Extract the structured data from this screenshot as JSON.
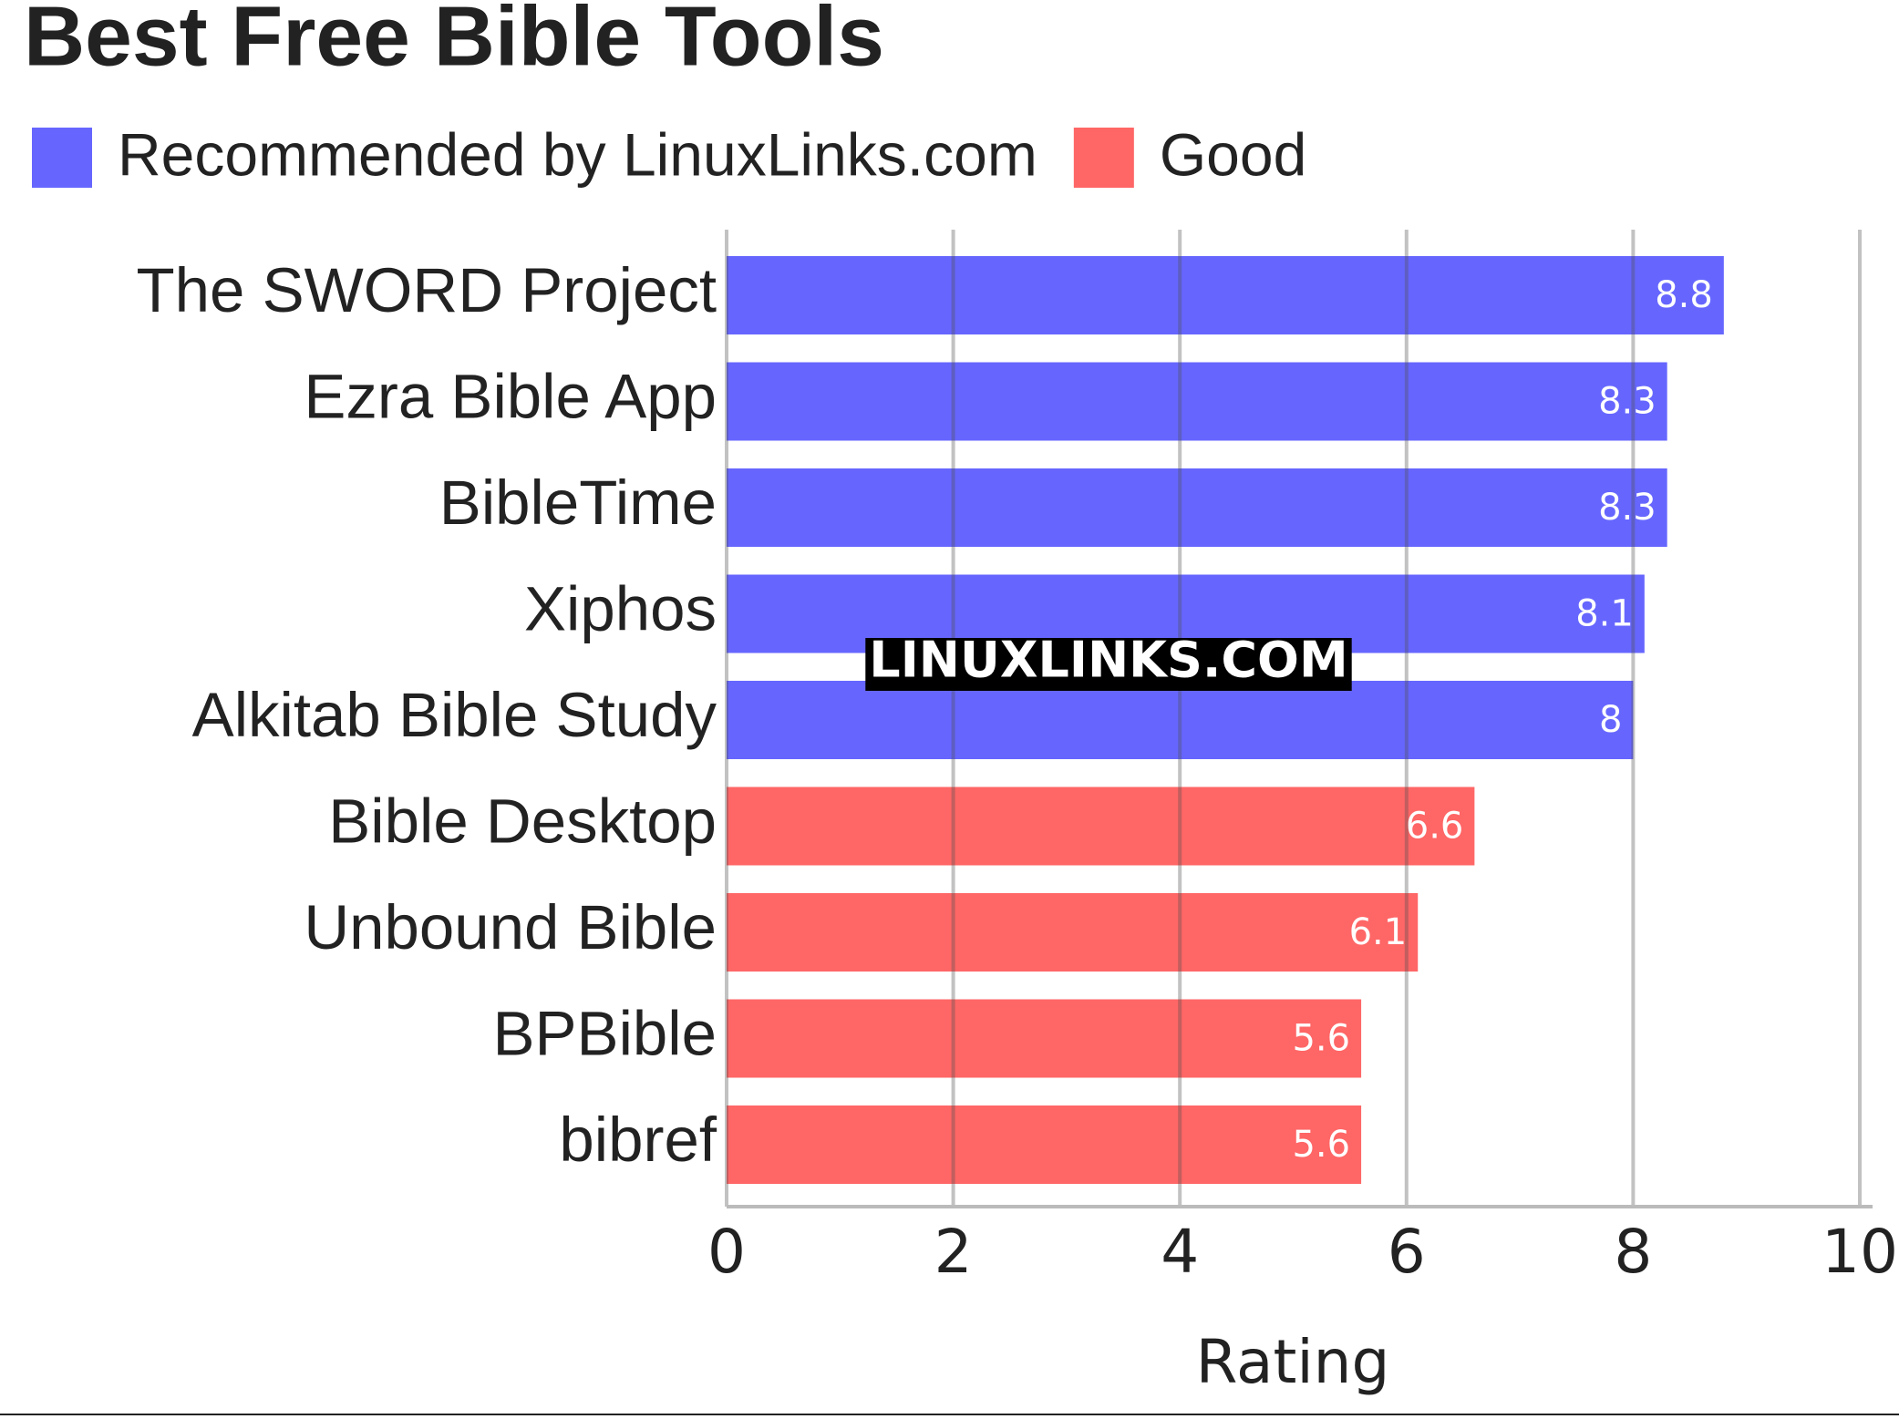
{
  "chart_data": {
    "type": "bar",
    "orientation": "horizontal",
    "title": "Best Free Bible Tools",
    "categories": [
      "The SWORD Project",
      "Ezra Bible App",
      "BibleTime",
      "Xiphos",
      "Alkitab Bible Study",
      "Bible Desktop",
      "Unbound Bible",
      "BPBible",
      "bibref"
    ],
    "series": [
      {
        "name": "Recommended by LinuxLinks.com",
        "color": "#6666ff",
        "values": [
          8.8,
          8.3,
          8.3,
          8.1,
          8,
          null,
          null,
          null,
          null
        ]
      },
      {
        "name": "Good",
        "color": "#ff6666",
        "values": [
          null,
          null,
          null,
          null,
          null,
          6.6,
          6.1,
          5.6,
          5.6
        ]
      }
    ],
    "xlabel": "Rating",
    "xlim": [
      0,
      10
    ],
    "xticks": [
      0,
      2,
      4,
      6,
      8,
      10
    ],
    "grid": true,
    "watermark": "LINUXLINKS.COM"
  }
}
